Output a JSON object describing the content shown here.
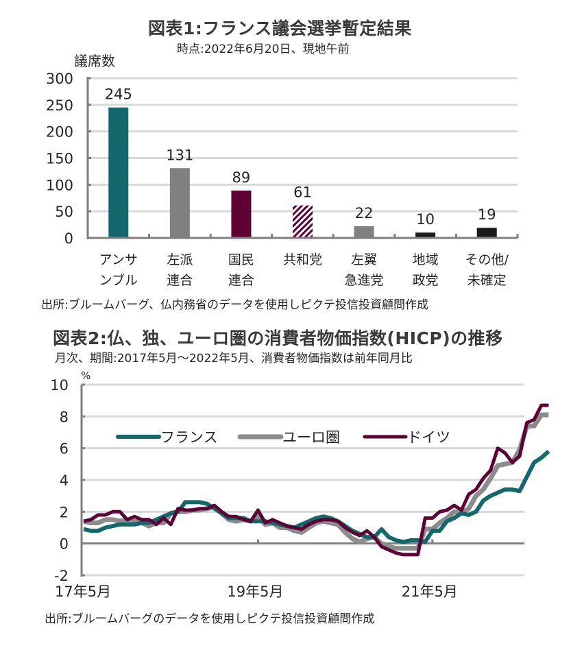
{
  "chart_data": [
    {
      "type": "bar",
      "title": "図表1:フランス議会選挙暫定結果",
      "subtitle": "時点:2022年6月20日、現地午前",
      "ylabel": "議席数",
      "xlabel": "",
      "ylim": [
        0,
        300
      ],
      "yticks": [
        "300",
        "250",
        "200",
        "150",
        "100",
        "50",
        "0"
      ],
      "ytick_values": [
        300,
        250,
        200,
        150,
        100,
        50,
        0
      ],
      "grid": true,
      "categories": [
        {
          "line1": "アンサ",
          "line2": "ンブル"
        },
        {
          "line1": "左派",
          "line2": "連合"
        },
        {
          "line1": "国民",
          "line2": "連合"
        },
        {
          "line1": "共和党",
          "line2": ""
        },
        {
          "line1": "左翼",
          "line2": "急進党"
        },
        {
          "line1": "地域",
          "line2": "政党"
        },
        {
          "line1": "その他/",
          "line2": "未確定"
        }
      ],
      "values": [
        245,
        131,
        89,
        61,
        22,
        10,
        19
      ],
      "value_labels": [
        "245",
        "131",
        "89",
        "61",
        "22",
        "10",
        "19"
      ],
      "colors": [
        "#12686b",
        "#808080",
        "#5e0034",
        "hatch",
        "#808080",
        "#1a1a1a",
        "#1a1a1a"
      ],
      "hatch_color": "#5e0034",
      "source": "出所:ブルームバーグ、仏内務省のデータを使用しピクテ投信投資顧問作成"
    },
    {
      "type": "line",
      "title": "図表2:仏、独、ユーロ圏の消費者物価指数(HICP)の推移",
      "subtitle": "月次、期間:2017年5月～2022年5月、消費者物価指数は前年同月比",
      "ylabel": "%",
      "ylim": [
        -2,
        10
      ],
      "yticks": [
        "10",
        "8",
        "6",
        "4",
        "2",
        "0",
        "-2"
      ],
      "ytick_values": [
        10,
        8,
        6,
        4,
        2,
        0,
        -2
      ],
      "grid": true,
      "x_start": "2017-05",
      "x_end": "2022-05",
      "xtick_labels": [
        "17年5月",
        "19年5月",
        "21年5月"
      ],
      "xtick_months": [
        0,
        24,
        48
      ],
      "legend_position": "top-left",
      "series": [
        {
          "name": "フランス",
          "color": "#12686b",
          "values": [
            0.9,
            0.8,
            0.8,
            1.0,
            1.1,
            1.2,
            1.2,
            1.2,
            1.3,
            1.3,
            1.5,
            1.7,
            1.9,
            2.0,
            2.6,
            2.6,
            2.6,
            2.5,
            2.2,
            1.9,
            1.6,
            1.6,
            1.6,
            1.4,
            1.4,
            1.4,
            1.3,
            1.2,
            1.1,
            1.0,
            1.2,
            1.4,
            1.6,
            1.7,
            1.6,
            1.4,
            1.1,
            0.8,
            0.6,
            0.4,
            0.4,
            0.9,
            0.4,
            0.2,
            0.1,
            0.2,
            0.2,
            0.1,
            0.8,
            0.8,
            1.4,
            1.6,
            1.9,
            1.8,
            2.0,
            2.7,
            3.0,
            3.2,
            3.4,
            3.4,
            3.3,
            4.2,
            5.1,
            5.4,
            5.8
          ]
        },
        {
          "name": "ユーロ圏",
          "color": "#8c8c8c",
          "values": [
            1.4,
            1.3,
            1.3,
            1.5,
            1.5,
            1.4,
            1.5,
            1.4,
            1.3,
            1.1,
            1.3,
            1.3,
            1.9,
            2.0,
            2.0,
            2.1,
            2.1,
            2.2,
            2.3,
            1.9,
            1.5,
            1.4,
            1.5,
            1.4,
            1.7,
            1.2,
            1.3,
            1.0,
            1.0,
            0.8,
            0.7,
            1.0,
            1.3,
            1.4,
            1.3,
            1.2,
            0.7,
            0.3,
            0.1,
            0.3,
            0.4,
            0.0,
            -0.2,
            -0.3,
            -0.3,
            -0.3,
            -0.3,
            0.9,
            0.9,
            1.3,
            1.6,
            2.0,
            1.9,
            2.2,
            3.0,
            3.4,
            4.1,
            4.9,
            5.0,
            5.1,
            5.9,
            7.4,
            7.4,
            8.1,
            8.1
          ]
        },
        {
          "name": "ドイツ",
          "color": "#5e0034",
          "values": [
            1.4,
            1.5,
            1.8,
            1.8,
            2.0,
            2.0,
            1.5,
            1.7,
            1.5,
            1.5,
            1.2,
            1.6,
            1.2,
            2.2,
            2.1,
            2.1,
            2.2,
            2.2,
            2.4,
            2.0,
            1.7,
            1.7,
            1.5,
            1.4,
            2.1,
            1.3,
            1.5,
            1.3,
            1.1,
            1.0,
            0.9,
            1.2,
            1.4,
            1.5,
            1.5,
            1.4,
            1.0,
            0.7,
            0.5,
            0.8,
            0.4,
            -0.2,
            -0.4,
            -0.6,
            -0.7,
            -0.7,
            -0.7,
            1.6,
            1.6,
            2.0,
            2.1,
            2.4,
            2.1,
            3.1,
            3.4,
            4.1,
            4.6,
            6.0,
            5.7,
            5.1,
            5.5,
            7.6,
            7.8,
            8.7,
            8.7
          ]
        }
      ],
      "source": "出所:ブルームバーグのデータを使用しピクテ投信投資顧問作成"
    }
  ]
}
